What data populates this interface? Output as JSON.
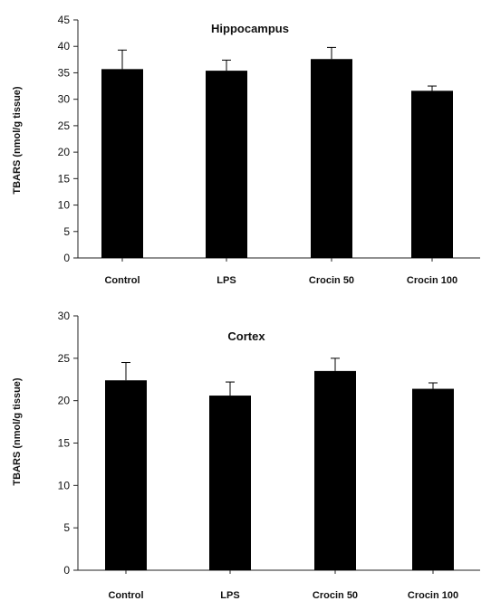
{
  "chart_data": [
    {
      "type": "bar",
      "title": "Hippocampus",
      "ylabel": "TBARS (nmol/g tissue)",
      "xlabel": "",
      "categories": [
        "Control",
        "LPS",
        "Crocin 50",
        "Crocin 100"
      ],
      "values": [
        35.7,
        35.4,
        37.6,
        31.6
      ],
      "errors": [
        3.6,
        2.0,
        2.2,
        0.9
      ],
      "ylim": [
        0,
        45
      ],
      "yticks": [
        0,
        5,
        10,
        15,
        20,
        25,
        30,
        35,
        40,
        45
      ],
      "ytick_labels": [
        "0",
        "5",
        "10",
        "15",
        "20",
        "25",
        "30",
        "35",
        "40",
        "45"
      ],
      "grid": false,
      "bar_color": "#000000"
    },
    {
      "type": "bar",
      "title": "Cortex",
      "ylabel": "TBARS (nmol/g tissue)",
      "xlabel": "",
      "categories": [
        "Control",
        "LPS",
        "Crocin 50",
        "Crocin 100"
      ],
      "values": [
        22.4,
        20.6,
        23.5,
        21.4
      ],
      "errors": [
        2.1,
        1.6,
        1.5,
        0.7
      ],
      "ylim": [
        0,
        30
      ],
      "yticks": [
        0,
        5,
        10,
        15,
        20,
        25,
        30
      ],
      "ytick_labels": [
        "0",
        "5",
        "10",
        "15",
        "20",
        "25",
        "30"
      ],
      "grid": false,
      "bar_color": "#000000"
    }
  ]
}
